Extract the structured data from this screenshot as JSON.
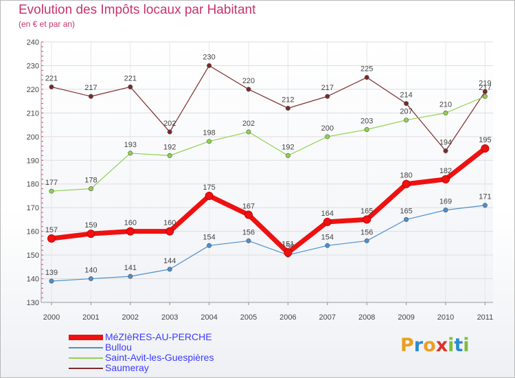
{
  "title": "Evolution des Impôts locaux par Habitant",
  "subtitle": "(en € et par an)",
  "logo": "Proxiti",
  "chart_data": {
    "type": "line",
    "title": "Evolution des Impôts locaux par Habitant",
    "subtitle": "(en € et par an)",
    "xlabel": "",
    "ylabel": "",
    "x": [
      "2000",
      "2001",
      "2002",
      "2003",
      "2004",
      "2005",
      "2006",
      "2007",
      "2008",
      "2009",
      "2010",
      "2011"
    ],
    "ylim": [
      130,
      240
    ],
    "yticks": [
      130,
      140,
      150,
      160,
      170,
      180,
      190,
      200,
      210,
      220,
      230,
      240
    ],
    "grid": true,
    "legend_position": "bottom-left",
    "series": [
      {
        "name": "MéZIèRES-AU-PERCHE",
        "color": "#ee1111",
        "values": [
          157,
          159,
          160,
          160,
          175,
          167,
          151,
          164,
          165,
          180,
          182,
          195
        ]
      },
      {
        "name": "Bullou",
        "color": "#4d8fcc",
        "values": [
          139,
          140,
          141,
          144,
          154,
          156,
          150,
          154,
          156,
          165,
          169,
          171
        ]
      },
      {
        "name": "Saint-Avit-les-Guespières",
        "color": "#8fd14f",
        "values": [
          177,
          178,
          193,
          192,
          198,
          202,
          192,
          200,
          203,
          207,
          210,
          217
        ]
      },
      {
        "name": "Saumeray",
        "color": "#7a2a2a",
        "values": [
          221,
          217,
          221,
          202,
          230,
          220,
          212,
          217,
          225,
          214,
          194,
          219
        ]
      }
    ]
  }
}
